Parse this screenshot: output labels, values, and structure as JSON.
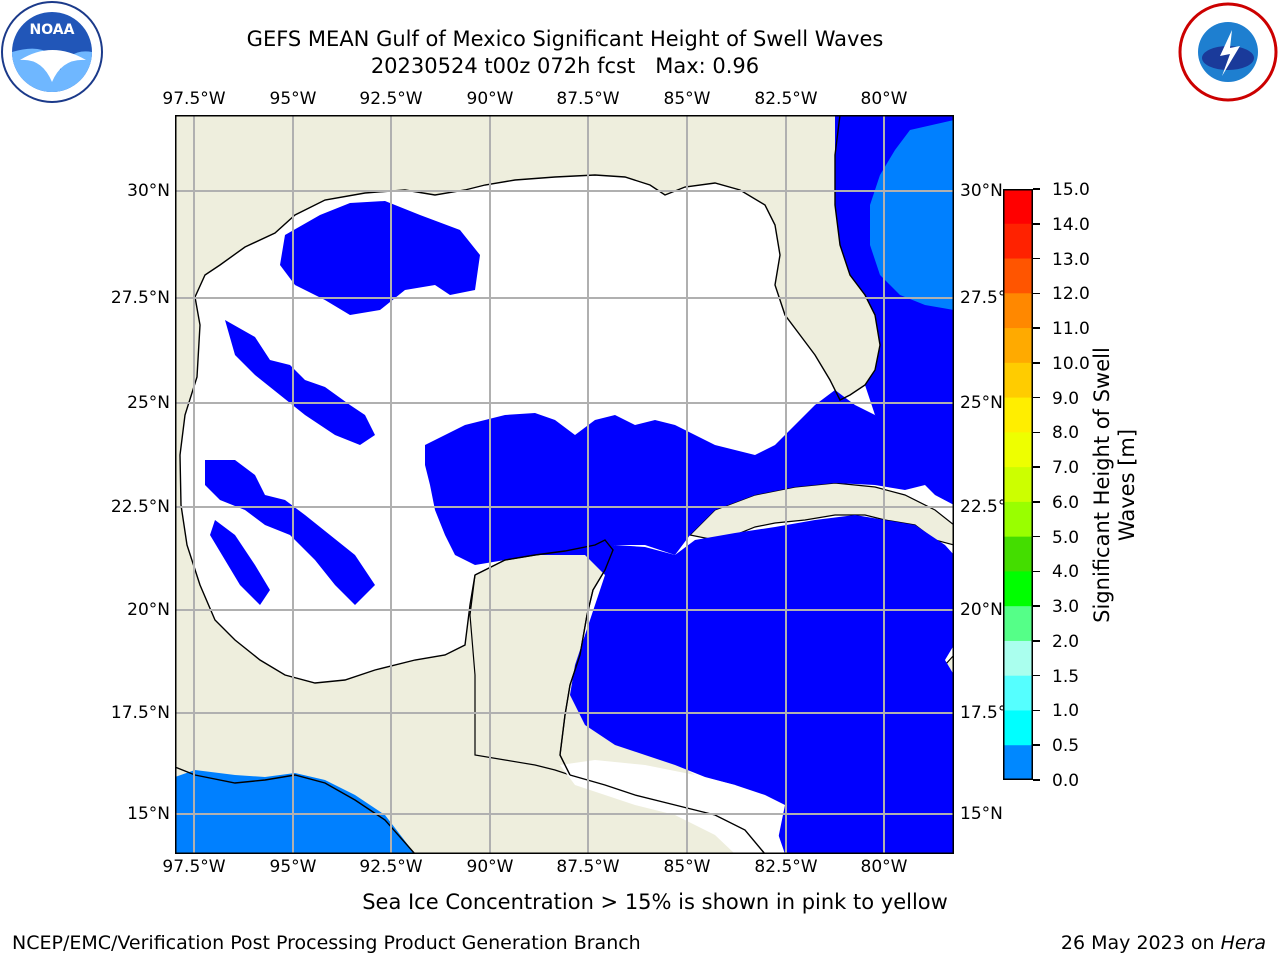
{
  "header": {
    "title_line1": "GEFS MEAN Gulf of Mexico Significant Height of Swell Waves",
    "title_line2": "20230524 t00z 072h fcst   Max: 0.96"
  },
  "logos": {
    "left": "NOAA",
    "left_ring_text": "NATIONAL OCEANIC AND ATMOSPHERIC ADMINISTRATION · U.S. DEPARTMENT OF COMMERCE",
    "right_ring_text": "NATIONAL WEATHER SERVICE"
  },
  "map": {
    "lon_labels": [
      "97.5°W",
      "95°W",
      "92.5°W",
      "90°W",
      "87.5°W",
      "85°W",
      "82.5°W",
      "80°W"
    ],
    "lat_labels": [
      "30°N",
      "27.5°N",
      "25°N",
      "22.5°N",
      "20°N",
      "17.5°N",
      "15°N"
    ],
    "colors": {
      "land": "#eeeedd",
      "water": "#ffffff",
      "band_0": "#0000ff",
      "band_05": "#0080ff",
      "grid": "#b0b0b0"
    }
  },
  "colorbar": {
    "label": "Significant Height of Swell Waves [m]",
    "ticks": [
      "15.0",
      "14.0",
      "13.0",
      "12.0",
      "11.0",
      "10.0",
      "9.0",
      "8.0",
      "7.0",
      "6.0",
      "5.0",
      "4.0",
      "3.0",
      "2.0",
      "1.5",
      "1.0",
      "0.5",
      "0.0"
    ],
    "colors": [
      "#ff0000",
      "#ff2200",
      "#ff5500",
      "#ff8800",
      "#ffaa00",
      "#ffcc00",
      "#ffee00",
      "#eeff00",
      "#ccff00",
      "#99ff00",
      "#44dd00",
      "#00ff00",
      "#55ff88",
      "#aaffee",
      "#55ffff",
      "#00ffff",
      "#0088ff",
      "#0000ff"
    ]
  },
  "footer": {
    "note": "Sea Ice Concentration > 15% is shown in pink to yellow",
    "left": "NCEP/EMC/Verification Post Processing Product Generation Branch",
    "right_prefix": "26 May 2023 on ",
    "right_machine": "Hera"
  }
}
